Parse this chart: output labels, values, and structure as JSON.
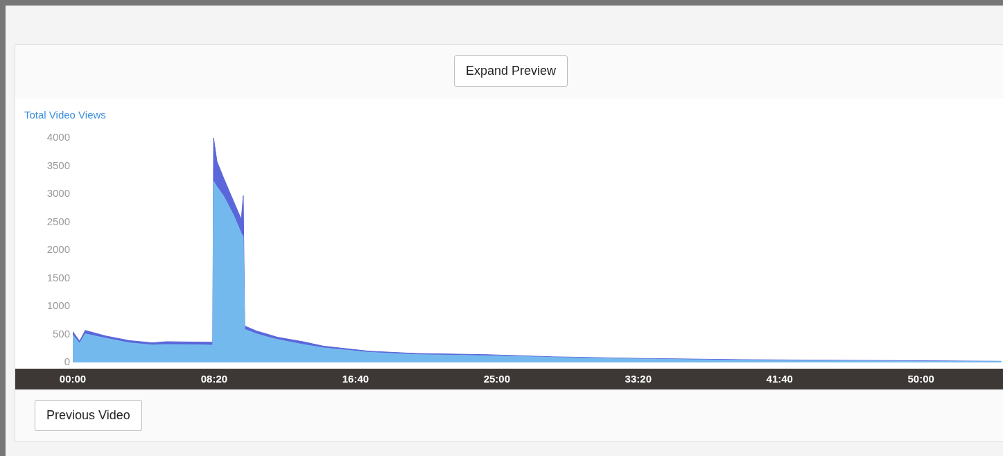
{
  "chart_data": {
    "type": "area",
    "ylabel": "Total Video Views",
    "stacked": true,
    "grid": false,
    "legend": false,
    "marker": "none",
    "x": [
      0,
      24,
      44,
      118,
      200,
      282,
      331,
      485,
      495,
      498,
      510,
      534,
      568,
      596,
      603,
      608,
      650,
      691,
      723,
      814,
      887,
      1049,
      1213,
      1458,
      1703,
      2029,
      2358,
      2684,
      3010,
      3284
    ],
    "series": [
      {
        "color": "#74b9ee",
        "values": [
          490,
          340,
          510,
          430,
          350,
          310,
          320,
          310,
          310,
          3230,
          3130,
          2960,
          2630,
          2300,
          2240,
          590,
          510,
          450,
          410,
          320,
          260,
          180,
          140,
          120,
          90,
          60,
          40,
          30,
          20,
          20
        ]
      },
      {
        "color": "#5a66d9",
        "values": [
          60,
          40,
          60,
          40,
          40,
          40,
          50,
          50,
          50,
          770,
          450,
          320,
          250,
          250,
          730,
          60,
          50,
          50,
          40,
          50,
          30,
          20,
          20,
          20,
          10,
          10,
          10,
          10,
          10,
          0
        ]
      }
    ],
    "xlim": [
      0,
      3290
    ],
    "xticks": [
      {
        "value": 0,
        "label": "00:00"
      },
      {
        "value": 500,
        "label": "08:20"
      },
      {
        "value": 1000,
        "label": "16:40"
      },
      {
        "value": 1500,
        "label": "25:00"
      },
      {
        "value": 2000,
        "label": "33:20"
      },
      {
        "value": 2500,
        "label": "41:40"
      },
      {
        "value": 3000,
        "label": "50:00"
      }
    ],
    "ylim": [
      0,
      4000
    ],
    "yticks": [
      0,
      500,
      1000,
      1500,
      2000,
      2500,
      3000,
      3500,
      4000
    ],
    "annotations": [
      "Expand Preview",
      "Previous Video"
    ]
  }
}
